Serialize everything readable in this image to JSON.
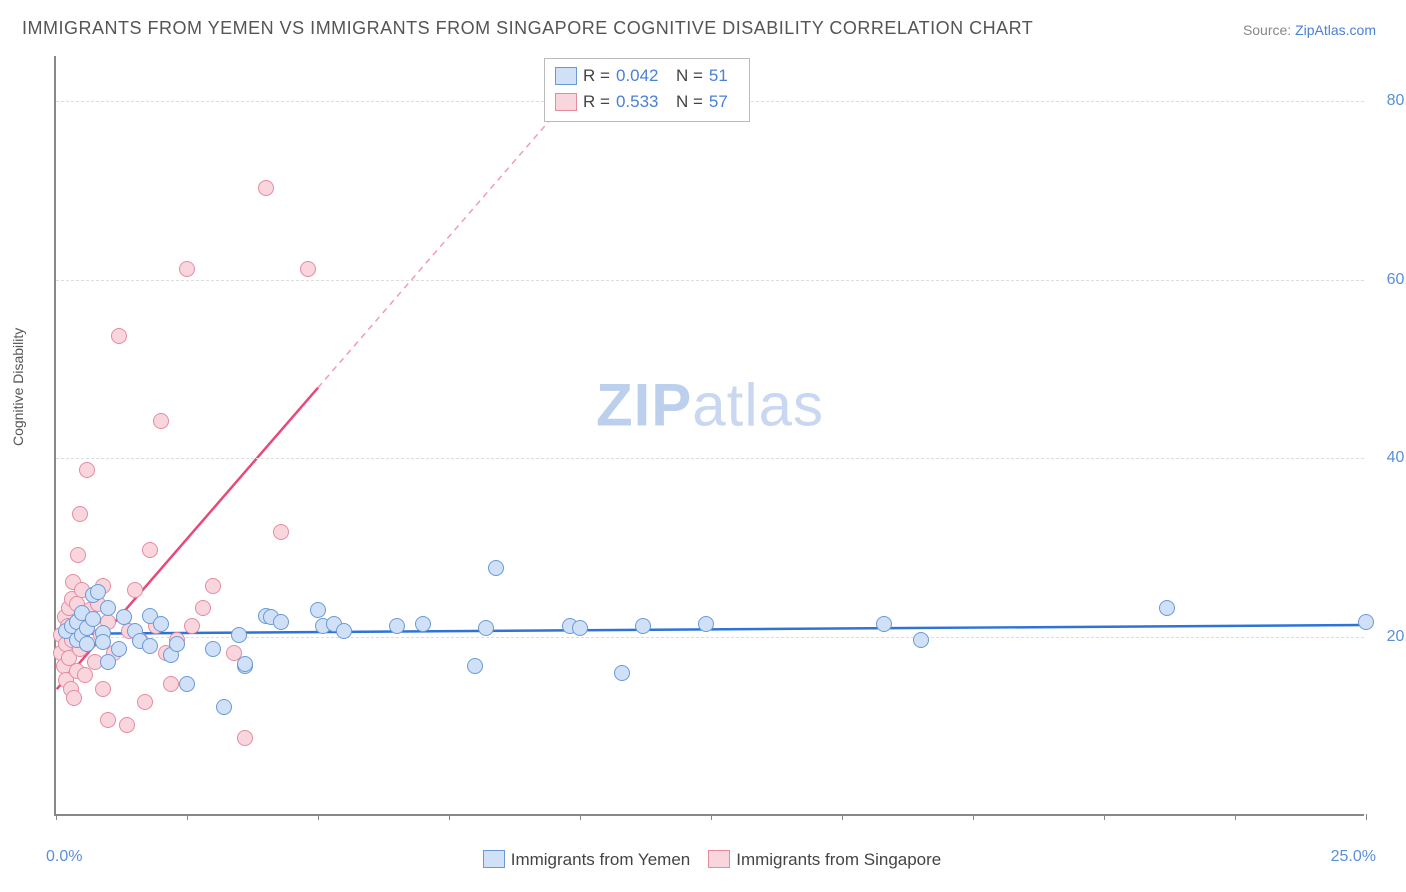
{
  "title": "IMMIGRANTS FROM YEMEN VS IMMIGRANTS FROM SINGAPORE COGNITIVE DISABILITY CORRELATION CHART",
  "source_label": "Source:",
  "source_name": "ZipAtlas.com",
  "watermark_a": "ZIP",
  "watermark_b": "atlas",
  "chart": {
    "type": "scatter",
    "xlim": [
      0,
      25
    ],
    "ylim": [
      0,
      85
    ],
    "xlabel_min": "0.0%",
    "xlabel_max": "25.0%",
    "ylabel": "Cognitive Disability",
    "ytick_labels": [
      "20.0%",
      "40.0%",
      "60.0%",
      "80.0%"
    ],
    "ytick_values": [
      20,
      40,
      60,
      80
    ],
    "xtick_values": [
      0,
      2.5,
      5,
      7.5,
      10,
      12.5,
      15,
      17.5,
      20,
      22.5,
      25
    ],
    "background_color": "#ffffff",
    "grid_color": "#dddddd",
    "marker_radius": 8,
    "marker_border_width": 1
  },
  "series": [
    {
      "name": "Immigrants from Yemen",
      "fill": "#cfe0f7",
      "stroke": "#6a9ad6",
      "line_color": "#2d74d6",
      "r_label": "R =",
      "r_value": "0.042",
      "n_label": "N =",
      "n_value": "51",
      "regression": {
        "x1": 0,
        "y1": 20.2,
        "x2": 25,
        "y2": 21.2,
        "dashed_from_x": null
      },
      "points": [
        [
          0.2,
          20.5
        ],
        [
          0.3,
          21.0
        ],
        [
          0.4,
          19.5
        ],
        [
          0.4,
          21.5
        ],
        [
          0.5,
          20.0
        ],
        [
          0.5,
          22.5
        ],
        [
          0.6,
          19.0
        ],
        [
          0.6,
          20.8
        ],
        [
          0.7,
          21.8
        ],
        [
          0.7,
          24.5
        ],
        [
          0.8,
          24.8
        ],
        [
          0.9,
          20.2
        ],
        [
          0.9,
          19.2
        ],
        [
          1.0,
          23.0
        ],
        [
          1.0,
          17.0
        ],
        [
          1.2,
          18.5
        ],
        [
          1.3,
          22.0
        ],
        [
          1.5,
          20.5
        ],
        [
          1.6,
          19.3
        ],
        [
          1.8,
          18.8
        ],
        [
          1.8,
          22.2
        ],
        [
          2.0,
          21.2
        ],
        [
          2.2,
          17.8
        ],
        [
          2.3,
          19.0
        ],
        [
          2.5,
          14.5
        ],
        [
          3.0,
          18.5
        ],
        [
          3.2,
          12.0
        ],
        [
          3.5,
          20.0
        ],
        [
          3.6,
          16.5
        ],
        [
          3.6,
          16.8
        ],
        [
          4.0,
          22.2
        ],
        [
          4.1,
          22.0
        ],
        [
          4.3,
          21.5
        ],
        [
          5.0,
          22.8
        ],
        [
          5.1,
          21.0
        ],
        [
          5.3,
          21.3
        ],
        [
          5.5,
          20.5
        ],
        [
          6.5,
          21.0
        ],
        [
          7.0,
          21.3
        ],
        [
          8.0,
          16.5
        ],
        [
          8.2,
          20.8
        ],
        [
          8.4,
          27.5
        ],
        [
          9.8,
          21.0
        ],
        [
          10.0,
          20.8
        ],
        [
          10.8,
          15.8
        ],
        [
          11.2,
          21.0
        ],
        [
          12.4,
          21.3
        ],
        [
          15.8,
          21.2
        ],
        [
          16.5,
          19.5
        ],
        [
          21.2,
          23.0
        ],
        [
          25.0,
          21.5
        ]
      ]
    },
    {
      "name": "Immigrants from Singapore",
      "fill": "#f9d6de",
      "stroke": "#e48ba0",
      "line_color": "#e74a77",
      "r_label": "R =",
      "r_value": "0.533",
      "n_label": "N =",
      "n_value": "57",
      "regression": {
        "x1": 0,
        "y1": 14.0,
        "x2": 10.5,
        "y2": 85.0,
        "solid_until_x": 5.0
      },
      "points": [
        [
          0.1,
          18.0
        ],
        [
          0.1,
          20.0
        ],
        [
          0.15,
          16.5
        ],
        [
          0.18,
          22.0
        ],
        [
          0.2,
          15.0
        ],
        [
          0.2,
          19.0
        ],
        [
          0.22,
          21.0
        ],
        [
          0.25,
          17.5
        ],
        [
          0.25,
          23.0
        ],
        [
          0.28,
          14.0
        ],
        [
          0.3,
          19.5
        ],
        [
          0.3,
          24.0
        ],
        [
          0.32,
          26.0
        ],
        [
          0.35,
          13.0
        ],
        [
          0.38,
          20.5
        ],
        [
          0.4,
          16.0
        ],
        [
          0.4,
          23.5
        ],
        [
          0.42,
          29.0
        ],
        [
          0.45,
          18.5
        ],
        [
          0.45,
          33.5
        ],
        [
          0.5,
          21.5
        ],
        [
          0.5,
          25.0
        ],
        [
          0.55,
          15.5
        ],
        [
          0.6,
          19.0
        ],
        [
          0.6,
          38.5
        ],
        [
          0.65,
          22.8
        ],
        [
          0.7,
          24.5
        ],
        [
          0.75,
          17.0
        ],
        [
          0.8,
          23.5
        ],
        [
          0.85,
          20.0
        ],
        [
          0.9,
          14.0
        ],
        [
          0.9,
          25.5
        ],
        [
          1.0,
          10.5
        ],
        [
          1.0,
          21.5
        ],
        [
          1.1,
          18.0
        ],
        [
          1.2,
          53.5
        ],
        [
          1.3,
          22.0
        ],
        [
          1.35,
          10.0
        ],
        [
          1.4,
          20.5
        ],
        [
          1.5,
          25.0
        ],
        [
          1.6,
          19.5
        ],
        [
          1.7,
          12.5
        ],
        [
          1.8,
          29.5
        ],
        [
          1.9,
          21.0
        ],
        [
          2.0,
          44.0
        ],
        [
          2.1,
          18.0
        ],
        [
          2.2,
          14.5
        ],
        [
          2.3,
          19.5
        ],
        [
          2.5,
          61.0
        ],
        [
          2.6,
          21.0
        ],
        [
          2.8,
          23.0
        ],
        [
          3.0,
          25.5
        ],
        [
          3.4,
          18.0
        ],
        [
          3.6,
          8.5
        ],
        [
          4.0,
          70.0
        ],
        [
          4.3,
          31.5
        ],
        [
          4.8,
          61.0
        ]
      ]
    }
  ],
  "bottom_legend": [
    {
      "label": "Immigrants from Yemen",
      "fill": "#cfe0f7",
      "stroke": "#6a9ad6"
    },
    {
      "label": "Immigrants from Singapore",
      "fill": "#f9d6de",
      "stroke": "#e48ba0"
    }
  ]
}
